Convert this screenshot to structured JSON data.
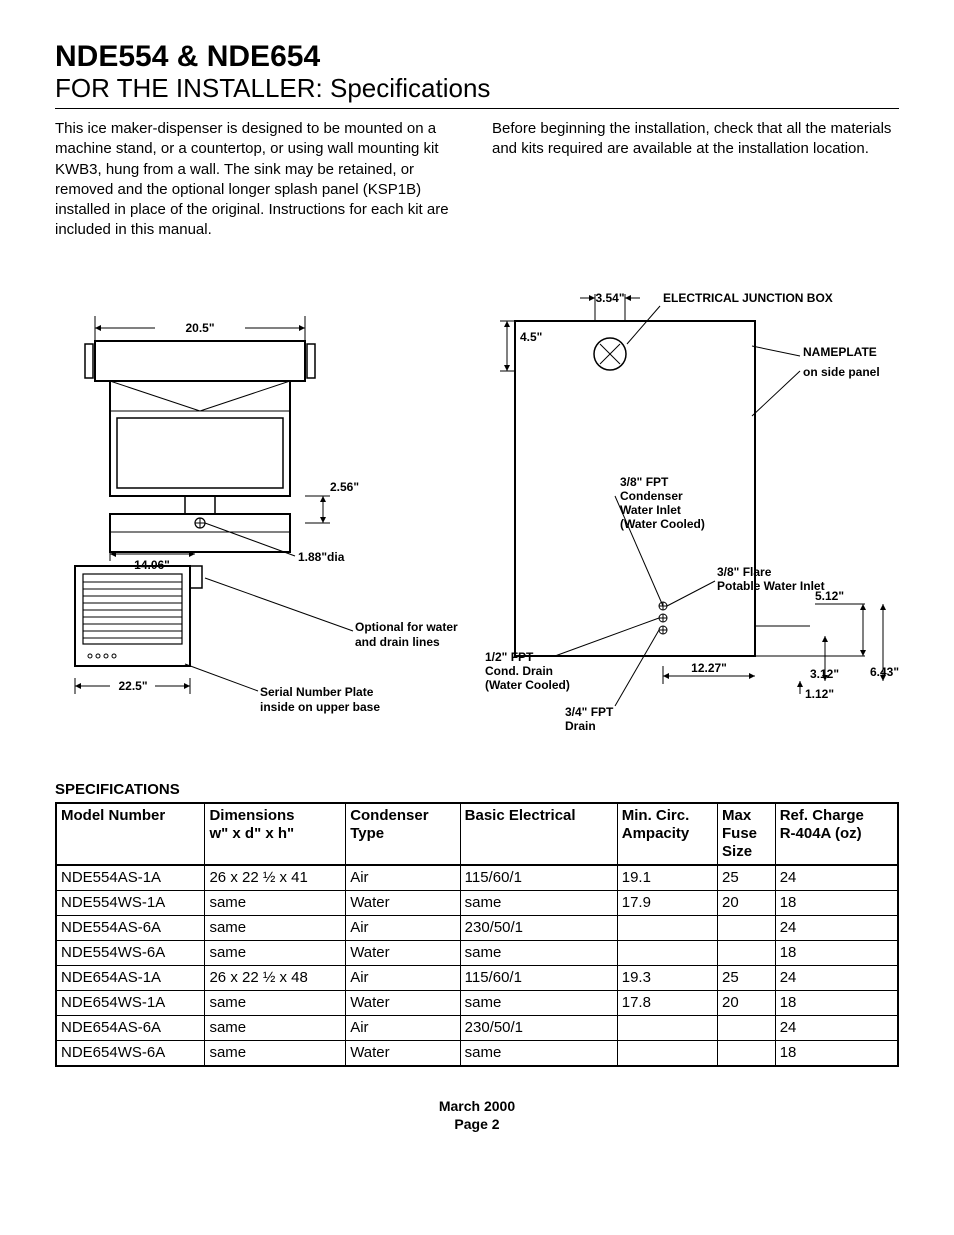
{
  "header": {
    "title_main": "NDE554 & NDE654",
    "title_sub": "FOR THE INSTALLER: Specifications"
  },
  "intro": {
    "left": "This ice maker-dispenser is designed to be mounted on a machine stand, or a countertop, or using wall mounting kit KWB3, hung from a wall. The sink may be retained, or removed and the optional longer splash panel (KSP1B) installed in place of the original. Instructions for each kit are included in this manual.",
    "right": "Before beginning the installation, check that all the materials and kits required are available at the installation location."
  },
  "diagram": {
    "dim_20_5": "20.5\"",
    "dim_22_5": "22.5\"",
    "dim_14_06": "14.06\"",
    "dim_2_56": "2.56\"",
    "dim_1_88": "1.88\"dia",
    "dim_3_54": "3.54\"",
    "dim_4_5": "4.5\"",
    "dim_12_27": "12.27\"",
    "dim_3_12": "3.12\"",
    "dim_6_43": "6.43\"",
    "dim_1_12": "1.12\"",
    "dim_5_12": "5.12\"",
    "label_ejb": "ELECTRICAL JUNCTION BOX",
    "label_nameplate1": "NAMEPLATE",
    "label_nameplate2": "on side panel",
    "label_condenser1": "3/8\" FPT",
    "label_condenser2": "Condenser",
    "label_condenser3": "Water Inlet",
    "label_condenser4": "(Water Cooled)",
    "label_flare1": "3/8\" Flare",
    "label_flare2": "Potable Water Inlet",
    "label_conddrain1": "1/2\" FPT",
    "label_conddrain2": "Cond. Drain",
    "label_conddrain3": "(Water Cooled)",
    "label_drain1": "3/4\" FPT",
    "label_drain2": "Drain",
    "label_optional1": "Optional for water",
    "label_optional2": "and drain lines",
    "label_serial1": "Serial Number Plate",
    "label_serial2": "inside on upper base"
  },
  "spec_table": {
    "heading": "SPECIFICATIONS",
    "columns": [
      "Model Number",
      "Dimensions\nw\" x d\" x h\"",
      "Condenser\nType",
      "Basic Electrical",
      "Min. Circ.\nAmpacity",
      "Max\nFuse\nSize",
      "Ref. Charge\nR-404A (oz)"
    ],
    "rows": [
      [
        "NDE554AS-1A",
        "26 x 22 ½ x 41",
        "Air",
        "115/60/1",
        "19.1",
        "25",
        "24"
      ],
      [
        "NDE554WS-1A",
        "same",
        "Water",
        "same",
        "17.9",
        "20",
        "18"
      ],
      [
        "NDE554AS-6A",
        "same",
        "Air",
        "230/50/1",
        "",
        "",
        "24"
      ],
      [
        "NDE554WS-6A",
        "same",
        "Water",
        "same",
        "",
        "",
        "18"
      ],
      [
        "NDE654AS-1A",
        "26 x 22 ½ x 48",
        "Air",
        "115/60/1",
        "19.3",
        "25",
        "24"
      ],
      [
        "NDE654WS-1A",
        "same",
        "Water",
        "same",
        "17.8",
        "20",
        "18"
      ],
      [
        "NDE654AS-6A",
        "same",
        "Air",
        "230/50/1",
        "",
        "",
        "24"
      ],
      [
        "NDE654WS-6A",
        "same",
        "Water",
        "same",
        "",
        "",
        "18"
      ]
    ]
  },
  "footer": {
    "line1": "March 2000",
    "line2": "Page 2"
  },
  "style": {
    "stroke": "#000000",
    "stroke_width": 1.5,
    "thin_stroke_width": 1,
    "font_family": "Arial"
  }
}
